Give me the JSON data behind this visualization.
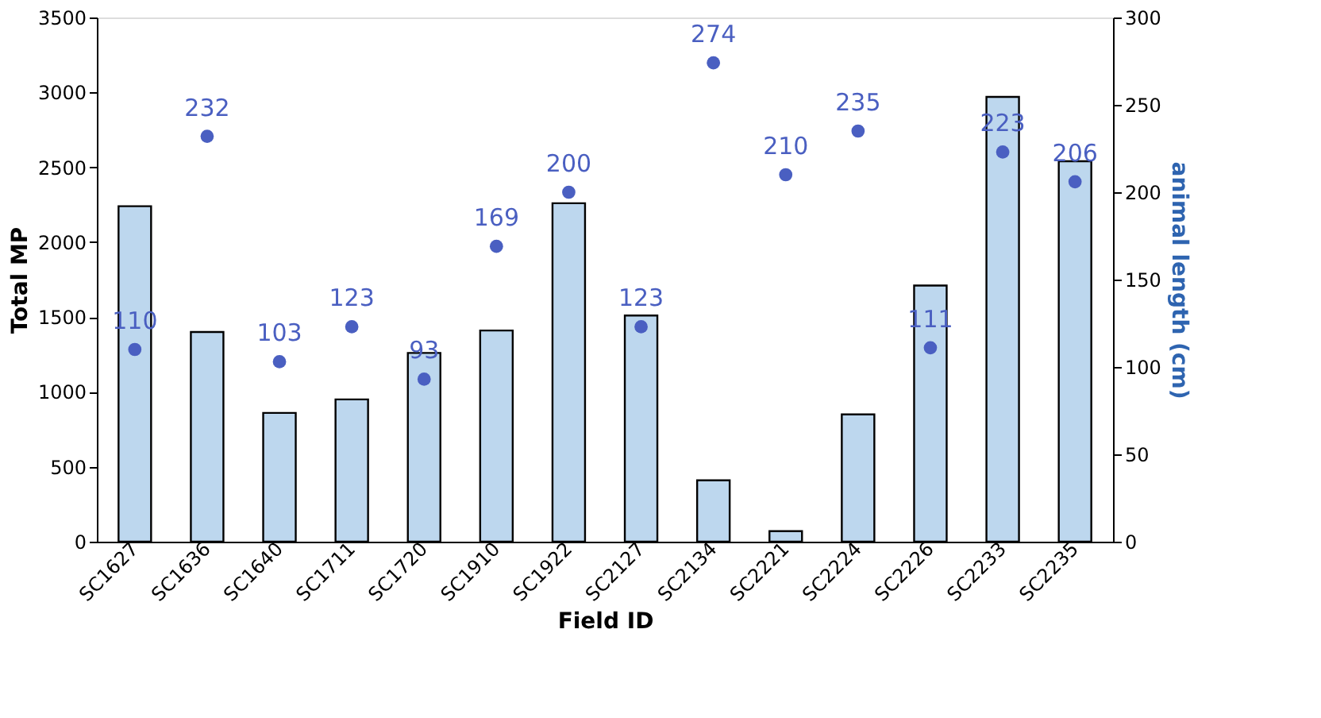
{
  "chart_data": {
    "type": "bar",
    "xlabel": "Field ID",
    "ylabel": "Total MP",
    "y2label": "animal length (cm)",
    "categories": [
      "SC1627",
      "SC1636",
      "SC1640",
      "SC1711",
      "SC1720",
      "SC1910",
      "SC1922",
      "SC2127",
      "SC2134",
      "SC2221",
      "SC2224",
      "SC2226",
      "SC2233",
      "SC2235"
    ],
    "series": [
      {
        "color": "#bdd7ee",
        "values": [
          2240,
          1400,
          860,
          950,
          1260,
          1410,
          2260,
          1510,
          410,
          70,
          850,
          1710,
          2970,
          2540
        ]
      },
      {
        "type": "scatter",
        "axis": "y2",
        "color": "#4a5fc1",
        "values": [
          110,
          232,
          103,
          123,
          93,
          169,
          200,
          123,
          274,
          210,
          235,
          111,
          223,
          206
        ],
        "value_labels": [
          "110",
          "232",
          "103",
          "123",
          "93",
          "169",
          "200",
          "123",
          "274",
          "210",
          "235",
          "111",
          "223",
          "206"
        ]
      }
    ],
    "ylim": [
      0,
      3500
    ],
    "yticks": [
      0,
      500,
      1000,
      1500,
      2000,
      2500,
      3000,
      3500
    ],
    "y2lim": [
      0,
      300
    ],
    "y2ticks": [
      0,
      50,
      100,
      150,
      200,
      250,
      300
    ],
    "grid": false,
    "marker": "circle"
  }
}
